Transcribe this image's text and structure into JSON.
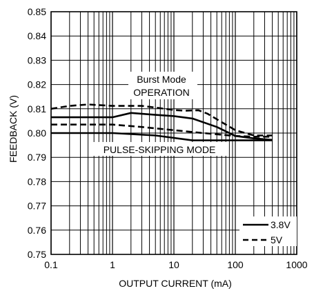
{
  "chart_data": {
    "type": "line",
    "xlabel": "OUTPUT CURRENT (mA)",
    "ylabel": "FEEDBACK (V)",
    "xscale": "log",
    "xlim": [
      0.1,
      1000
    ],
    "ylim": [
      0.75,
      0.85
    ],
    "x_ticks": [
      0.1,
      1,
      10,
      100,
      1000
    ],
    "x_tick_labels": [
      "0.1",
      "1",
      "10",
      "100",
      "1000"
    ],
    "y_ticks": [
      0.75,
      0.76,
      0.77,
      0.78,
      0.79,
      0.8,
      0.81,
      0.82,
      0.83,
      0.84,
      0.85
    ],
    "y_tick_labels": [
      "0.75",
      "0.76",
      "0.77",
      "0.78",
      "0.79",
      "0.80",
      "0.81",
      "0.82",
      "0.83",
      "0.84",
      "0.85"
    ],
    "grid": true,
    "legend_position": "bottom-right",
    "series": [
      {
        "name": "3.8V",
        "style": "solid",
        "curves": [
          [
            [
              0.1,
              0.8065
            ],
            [
              1,
              0.8065
            ],
            [
              2,
              0.8083
            ],
            [
              5,
              0.8075
            ],
            [
              10,
              0.807
            ],
            [
              20,
              0.806
            ],
            [
              50,
              0.8025
            ],
            [
              100,
              0.7988
            ],
            [
              200,
              0.7978
            ],
            [
              400,
              0.7972
            ]
          ],
          [
            [
              0.1,
              0.8
            ],
            [
              1,
              0.8
            ],
            [
              5,
              0.799
            ],
            [
              10,
              0.798
            ],
            [
              20,
              0.797
            ],
            [
              50,
              0.797
            ],
            [
              100,
              0.797
            ],
            [
              200,
              0.797
            ],
            [
              400,
              0.797
            ]
          ]
        ]
      },
      {
        "name": "5V",
        "style": "dashed",
        "curves": [
          [
            [
              0.1,
              0.81
            ],
            [
              0.2,
              0.8112
            ],
            [
              0.4,
              0.8118
            ],
            [
              1,
              0.8112
            ],
            [
              3,
              0.8112
            ],
            [
              5,
              0.8105
            ],
            [
              10,
              0.8095
            ],
            [
              15,
              0.8092
            ],
            [
              25,
              0.8094
            ],
            [
              35,
              0.808
            ],
            [
              60,
              0.8045
            ],
            [
              100,
              0.8012
            ],
            [
              200,
              0.799
            ],
            [
              400,
              0.799
            ]
          ],
          [
            [
              0.1,
              0.8035
            ],
            [
              1,
              0.8035
            ],
            [
              3,
              0.8025
            ],
            [
              10,
              0.8012
            ],
            [
              30,
              0.8
            ],
            [
              100,
              0.7988
            ],
            [
              200,
              0.7985
            ],
            [
              400,
              0.7985
            ]
          ]
        ]
      }
    ],
    "annotations": [
      {
        "line1": "Burst Mode",
        "line2": "OPERATION"
      },
      {
        "text": "PULSE-SKIPPING MODE"
      }
    ]
  }
}
